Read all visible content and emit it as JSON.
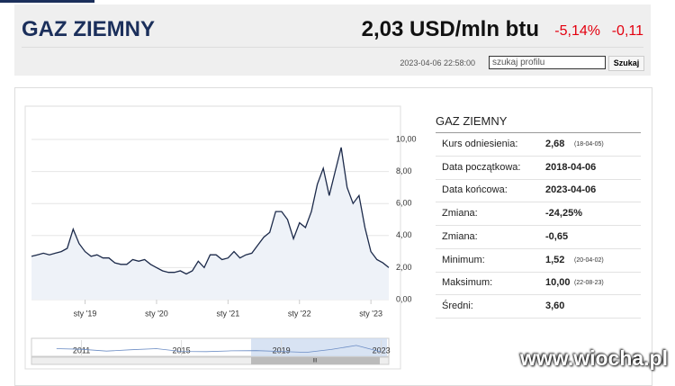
{
  "header": {
    "title": "GAZ ZIEMNY",
    "price": "2,03 USD/mln btu",
    "change_pct": "-5,14%",
    "change": "-0,11",
    "timestamp": "2023-04-06 22:58:00",
    "search_placeholder": "szukaj profilu",
    "search_button": "Szukaj"
  },
  "chart_data": [
    {
      "type": "line",
      "x": [
        "2018-04",
        "2018-05",
        "2018-06",
        "2018-07",
        "2018-08",
        "2018-09",
        "2018-10",
        "2018-11",
        "2018-12",
        "2019-01",
        "2019-02",
        "2019-03",
        "2019-04",
        "2019-05",
        "2019-06",
        "2019-07",
        "2019-08",
        "2019-09",
        "2019-10",
        "2019-11",
        "2019-12",
        "2020-01",
        "2020-02",
        "2020-03",
        "2020-04",
        "2020-05",
        "2020-06",
        "2020-07",
        "2020-08",
        "2020-09",
        "2020-10",
        "2020-11",
        "2020-12",
        "2021-01",
        "2021-02",
        "2021-03",
        "2021-04",
        "2021-05",
        "2021-06",
        "2021-07",
        "2021-08",
        "2021-09",
        "2021-10",
        "2021-11",
        "2021-12",
        "2022-01",
        "2022-02",
        "2022-03",
        "2022-04",
        "2022-05",
        "2022-06",
        "2022-07",
        "2022-08",
        "2022-09",
        "2022-10",
        "2022-11",
        "2022-12",
        "2023-01",
        "2023-02",
        "2023-03",
        "2023-04"
      ],
      "series": [
        {
          "color": "#1c2a4a",
          "values": [
            2.7,
            2.8,
            2.9,
            2.8,
            2.9,
            3.0,
            3.2,
            4.4,
            3.5,
            3.0,
            2.7,
            2.8,
            2.6,
            2.6,
            2.3,
            2.2,
            2.2,
            2.5,
            2.4,
            2.5,
            2.2,
            2.0,
            1.8,
            1.7,
            1.7,
            1.8,
            1.6,
            1.8,
            2.4,
            2.0,
            2.8,
            2.8,
            2.5,
            2.6,
            3.0,
            2.6,
            2.8,
            2.9,
            3.4,
            3.9,
            4.2,
            5.5,
            5.5,
            5.0,
            3.8,
            4.8,
            4.5,
            5.5,
            7.2,
            8.2,
            6.5,
            8.0,
            9.5,
            7.0,
            6.0,
            6.5,
            4.5,
            3.0,
            2.5,
            2.3,
            2.0
          ]
        }
      ],
      "xlim": [
        "2018-04",
        "2023-04"
      ],
      "xticks": [
        {
          "value": "2019-01",
          "label": "sty '19"
        },
        {
          "value": "2020-01",
          "label": "sty '20"
        },
        {
          "value": "2021-01",
          "label": "sty '21"
        },
        {
          "value": "2022-01",
          "label": "sty '22"
        },
        {
          "value": "2023-01",
          "label": "sty '23"
        }
      ],
      "ylim": [
        0,
        10
      ],
      "yticks": [
        {
          "value": 10,
          "label": "10,00"
        },
        {
          "value": 8,
          "label": "8,00"
        },
        {
          "value": 6,
          "label": "6,00"
        },
        {
          "value": 4,
          "label": "4,00"
        },
        {
          "value": 2,
          "label": "2,00"
        },
        {
          "value": 0,
          "label": "0,00"
        }
      ],
      "grid": true,
      "area_color": "#eef2f8"
    },
    {
      "type": "line",
      "x": [
        2010,
        2011,
        2012,
        2013,
        2014,
        2015,
        2016,
        2017,
        2018,
        2019,
        2020,
        2021,
        2022,
        2023
      ],
      "series": [
        {
          "color": "#6b8cc4",
          "values": [
            4.4,
            4.0,
            2.8,
            3.7,
            4.4,
            2.6,
            2.5,
            3.0,
            3.1,
            2.6,
            2.0,
            3.9,
            6.5,
            2.3
          ]
        }
      ],
      "xlim": [
        2009,
        2023.3
      ],
      "xticks": [
        2011,
        2015,
        2019,
        2023
      ],
      "ylim": [
        0,
        10
      ]
    }
  ],
  "stats": {
    "title": "GAZ ZIEMNY",
    "rows": [
      {
        "label": "Kurs odniesienia:",
        "value": "2,68",
        "note": "(18-04-05)"
      },
      {
        "label": "Data początkowa:",
        "value": "2018-04-06"
      },
      {
        "label": "Data końcowa:",
        "value": "2023-04-06"
      },
      {
        "label": "Zmiana:",
        "value": "-24,25%"
      },
      {
        "label": "Zmiana:",
        "value": "-0,65"
      },
      {
        "label": "Minimum:",
        "value": "1,52",
        "note": "(20-04-02)"
      },
      {
        "label": "Maksimum:",
        "value": "10,00",
        "note": "(22-08-23)"
      },
      {
        "label": "Średni:",
        "value": "3,60"
      }
    ]
  },
  "watermark": "www.wiocha.pl"
}
